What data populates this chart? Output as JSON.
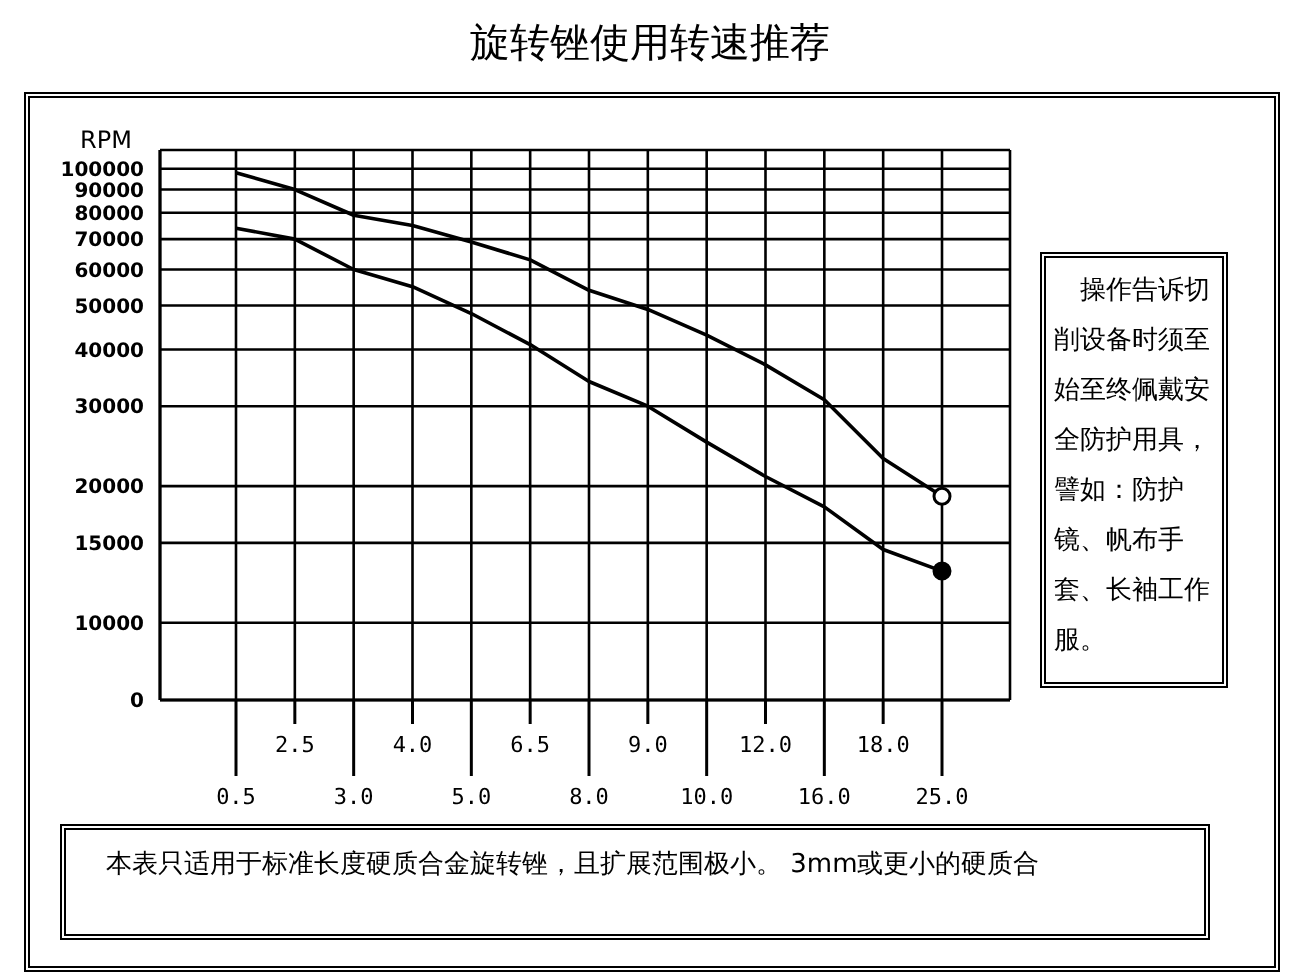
{
  "chart_data": {
    "type": "line",
    "title": "旋转锉使用转速推荐",
    "ylabel": "RPM",
    "categories": [
      "0.5",
      "2.5",
      "3.0",
      "4.0",
      "5.0",
      "6.5",
      "8.0",
      "9.0",
      "10.0",
      "12.0",
      "16.0",
      "18.0",
      "25.0"
    ],
    "series": [
      {
        "color": "#000000",
        "values": [
          98000,
          90000,
          79000,
          75000,
          69000,
          63000,
          54000,
          49000,
          43000,
          37000,
          31000,
          23000,
          19000
        ]
      },
      {
        "color": "#000000",
        "values": [
          74000,
          70000,
          60000,
          55000,
          48000,
          41000,
          34000,
          30000,
          25000,
          21000,
          18000,
          14500,
          13000
        ]
      }
    ],
    "log": "y",
    "ylim": [
      0,
      110000
    ],
    "yticks": [
      {
        "value": 0,
        "label": "0"
      },
      10000,
      15000,
      20000,
      30000,
      40000,
      50000,
      60000,
      70000,
      80000,
      90000,
      100000
    ],
    "grid": true,
    "annotations": [
      "操作告诉切削设备时须至始至终佩戴安全防护用具，譬如：防护镜、帆布手套、长袖工作服。",
      "本表只适用于标准长度硬质合金旋转锉，且扩展范围极小。 3mm或更小的硬质合"
    ]
  }
}
